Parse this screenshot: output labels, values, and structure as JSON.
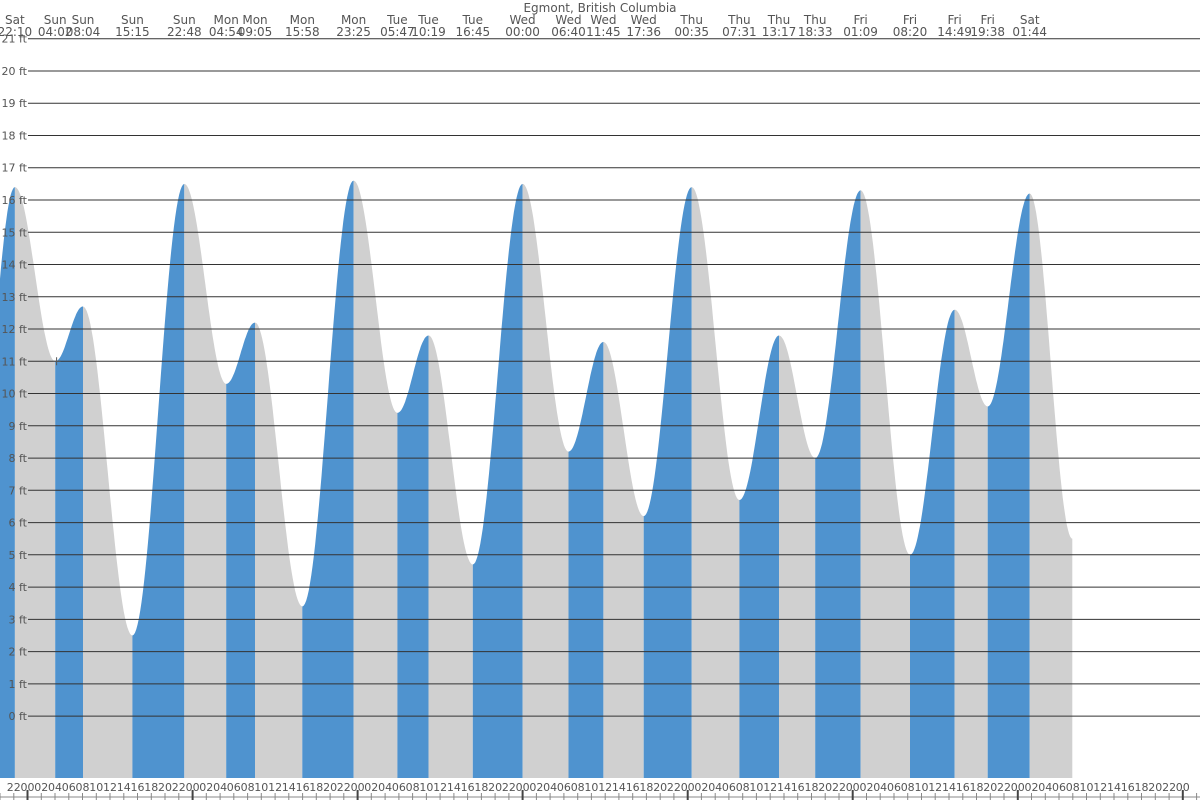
{
  "title": "Egmont, British Columbia",
  "colors": {
    "rising_fill": "#4f93cf",
    "falling_fill": "#d0d0d0",
    "gridline": "#333333",
    "text": "#555555",
    "background": "#ffffff"
  },
  "chart_data": {
    "type": "area",
    "title": "Egmont, British Columbia",
    "y_unit": "ft",
    "ylim": [
      -2.6,
      22.2
    ],
    "y_ticks": [
      "0 ft",
      "1 ft",
      "2 ft",
      "3 ft",
      "4 ft",
      "5 ft",
      "6 ft",
      "7 ft",
      "8 ft",
      "9 ft",
      "10 ft",
      "11 ft",
      "12 ft",
      "13 ft",
      "14 ft",
      "15 ft",
      "16 ft",
      "17 ft",
      "18 ft",
      "19 ft",
      "20 ft",
      "21 ft"
    ],
    "y_tick_values": [
      0,
      1,
      2,
      3,
      4,
      5,
      6,
      7,
      8,
      9,
      10,
      11,
      12,
      13,
      14,
      15,
      16,
      17,
      18,
      19,
      20,
      21
    ],
    "grid": true,
    "x_start_hour": 20,
    "hours_span": 174.5,
    "x_ticks": [
      "20",
      "22",
      "00",
      "02",
      "04",
      "06",
      "08",
      "10",
      "12",
      "14",
      "16",
      "18",
      "20",
      "22",
      "00",
      "02",
      "04",
      "06",
      "08",
      "10",
      "12",
      "14",
      "16",
      "18",
      "20",
      "22",
      "00",
      "02",
      "04",
      "06",
      "08",
      "10",
      "12",
      "14",
      "16",
      "18",
      "20",
      "22",
      "00",
      "02",
      "04",
      "06",
      "08",
      "10",
      "12",
      "14",
      "16",
      "18",
      "20",
      "22",
      "00",
      "02",
      "04",
      "06",
      "08",
      "10",
      "12",
      "14",
      "16",
      "18",
      "20",
      "22",
      "00",
      "02",
      "04",
      "06",
      "08",
      "10",
      "12",
      "14",
      "16",
      "18",
      "20",
      "22",
      "00",
      "02",
      "04",
      "06",
      "08",
      "10",
      "12",
      "14",
      "16",
      "18",
      "20",
      "22",
      "00",
      "02",
      "04",
      "06"
    ],
    "extrema": [
      {
        "day": "Sat",
        "time": "22:10",
        "height_ft": 16.4
      },
      {
        "day": "Sun",
        "time": "04:02",
        "height_ft": 11.0
      },
      {
        "day": "Sun",
        "time": "08:04",
        "height_ft": 12.7
      },
      {
        "day": "Sun",
        "time": "15:15",
        "height_ft": 2.5
      },
      {
        "day": "Sun",
        "time": "22:48",
        "height_ft": 16.5
      },
      {
        "day": "Mon",
        "time": "04:54",
        "height_ft": 10.3
      },
      {
        "day": "Mon",
        "time": "09:05",
        "height_ft": 12.2
      },
      {
        "day": "Mon",
        "time": "15:58",
        "height_ft": 3.4
      },
      {
        "day": "Mon",
        "time": "23:25",
        "height_ft": 16.6
      },
      {
        "day": "Tue",
        "time": "05:47",
        "height_ft": 9.4
      },
      {
        "day": "Tue",
        "time": "10:19",
        "height_ft": 11.8
      },
      {
        "day": "Tue",
        "time": "16:45",
        "height_ft": 4.7
      },
      {
        "day": "Wed",
        "time": "00:00",
        "height_ft": 16.5
      },
      {
        "day": "Wed",
        "time": "06:40",
        "height_ft": 8.2
      },
      {
        "day": "Wed",
        "time": "11:45",
        "height_ft": 11.6
      },
      {
        "day": "Wed",
        "time": "17:36",
        "height_ft": 6.2
      },
      {
        "day": "Thu",
        "time": "00:35",
        "height_ft": 16.4
      },
      {
        "day": "Thu",
        "time": "07:31",
        "height_ft": 6.7
      },
      {
        "day": "Thu",
        "time": "13:17",
        "height_ft": 11.8
      },
      {
        "day": "Thu",
        "time": "18:33",
        "height_ft": 8.0
      },
      {
        "day": "Fri",
        "time": "01:09",
        "height_ft": 16.3
      },
      {
        "day": "Fri",
        "time": "08:20",
        "height_ft": 5.0
      },
      {
        "day": "Fri",
        "time": "14:49",
        "height_ft": 12.6
      },
      {
        "day": "Fri",
        "time": "19:38",
        "height_ft": 9.6
      },
      {
        "day": "Sat",
        "time": "01:44",
        "height_ft": 16.2
      }
    ]
  }
}
